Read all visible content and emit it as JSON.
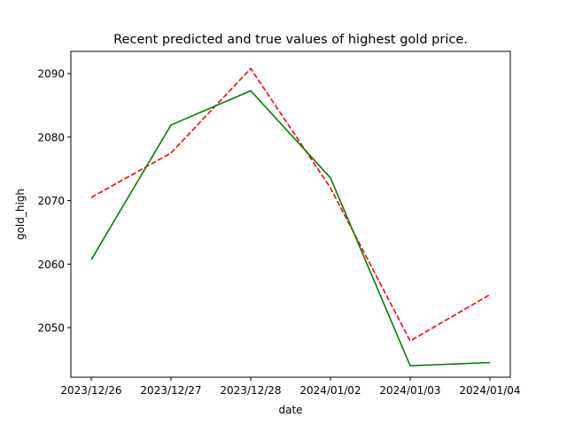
{
  "chart_data": {
    "type": "line",
    "title": "Recent predicted and true values of highest gold price.",
    "xlabel": "date",
    "ylabel": "gold_high",
    "categories": [
      "2023/12/26",
      "2023/12/27",
      "2023/12/28",
      "2024/01/02",
      "2024/01/03",
      "2024/01/04"
    ],
    "yticks": [
      "2050",
      "2060",
      "2070",
      "2080",
      "2090"
    ],
    "ylim": [
      2042.2,
      2093.5
    ],
    "grid": false,
    "series": [
      {
        "color": "#ff0000",
        "style": "dashed",
        "values": [
          2070.5,
          2077.5,
          2090.8,
          2072.0,
          2047.9,
          2055.2
        ]
      },
      {
        "color": "#008000",
        "style": "solid",
        "values": [
          2060.7,
          2081.9,
          2087.3,
          2073.6,
          2044.0,
          2044.5
        ]
      }
    ]
  }
}
